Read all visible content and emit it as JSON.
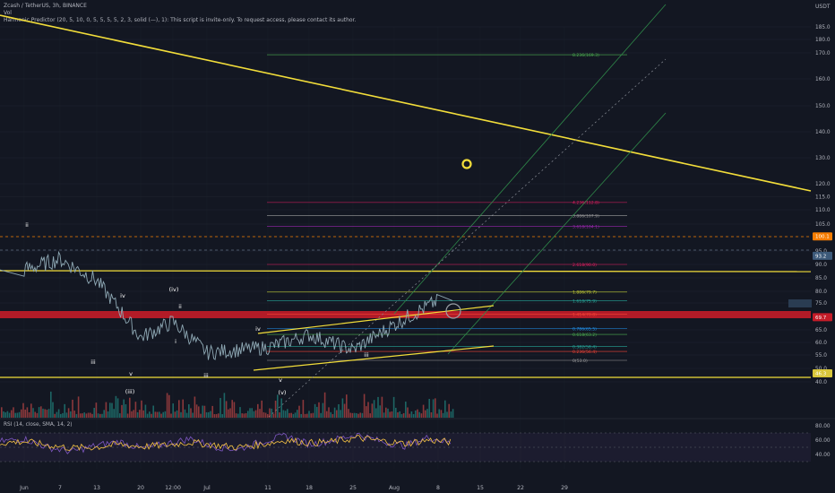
{
  "header": {
    "symbol_line": "Zcash / TetherUS, 3h, BINANCE",
    "vol_label": "Vol",
    "indicator_line": "Harmonic Predictor (20, 5, 10, 0, 5, 5, 5, 5, 2, 3, solid (—), 1): This script is invite-only. To request access, please contact its author."
  },
  "colors": {
    "background": "#131722",
    "price_line": "#8fa9b5",
    "trend_yellow": "#f2dd3a",
    "support_band": "#c41c28",
    "rsi_line": "#7e57c2",
    "rsi_ma": "#f6c343",
    "channel_green": "#2f8a4a",
    "vol_up": "#26a69a",
    "vol_down": "#ef5350"
  },
  "chart_data": [
    {
      "type": "line",
      "title": "Zcash / TetherUS, 3h, BINANCE",
      "currency": "USDT",
      "y_ticks": [
        40,
        50,
        55,
        60,
        65,
        70,
        75,
        80,
        85,
        90,
        95,
        100,
        105,
        110,
        115,
        120,
        130,
        140,
        150,
        160,
        170,
        180,
        185
      ],
      "ylim": [
        40,
        190
      ],
      "x_ticks": [
        "Jun",
        "7",
        "13",
        "20",
        "12:00",
        "Jul",
        "11",
        "18",
        "25",
        "Aug",
        "8",
        "15",
        "22",
        "29"
      ],
      "series": [
        {
          "x": [
            "Jun",
            "7",
            "13",
            "20",
            "12:00",
            "Jul",
            "11",
            "18",
            "25",
            "Aug",
            "8"
          ],
          "values": [
            88,
            92,
            84,
            62,
            68,
            56,
            58,
            63,
            57,
            67,
            76
          ]
        }
      ],
      "price_tags": [
        {
          "label": "100.1",
          "value": 100.1,
          "color": "#f57c00"
        },
        {
          "label": "93.2",
          "value": 93.2,
          "color": "#3d5a7a"
        },
        {
          "label": "69.7",
          "value": 69.7,
          "color": "#c41c28"
        },
        {
          "label": "46.3",
          "value": 46.3,
          "color": "#d8c63a"
        }
      ],
      "fib_levels": [
        {
          "label": "8.236(169.3)",
          "value": 169.3,
          "color": "#4caf50"
        },
        {
          "label": "4.236(112.8)",
          "value": 112.8,
          "color": "#e91e63"
        },
        {
          "label": "3.886(107.9)",
          "value": 107.9,
          "color": "#9e9e9e"
        },
        {
          "label": "3.618(104.1)",
          "value": 104.1,
          "color": "#9c27b0"
        },
        {
          "label": "2.618(90.0)",
          "value": 90.0,
          "color": "#e91e63"
        },
        {
          "label": "1.886(79.7)",
          "value": 79.7,
          "color": "#c0ca33"
        },
        {
          "label": "1.618(75.9)",
          "value": 75.9,
          "color": "#26a69a"
        },
        {
          "label": "1.414(70.8)",
          "value": 70.8,
          "color": "#f44336"
        },
        {
          "label": "0.786(65.5)",
          "value": 65.5,
          "color": "#2196f3"
        },
        {
          "label": "0.618(63.2)",
          "value": 63.2,
          "color": "#4caf50"
        },
        {
          "label": "0.382(58.4)",
          "value": 58.4,
          "color": "#26a69a"
        },
        {
          "label": "0.236(56.4)",
          "value": 56.4,
          "color": "#f44336"
        },
        {
          "label": "0(53.0)",
          "value": 53.0,
          "color": "#9e9e9e"
        }
      ],
      "wave_labels": [
        "ii",
        "iii",
        "iv",
        "v",
        "(iii)",
        "(iv)",
        "ii",
        "i",
        "iii",
        "iv",
        "v",
        "(v)",
        "iii"
      ]
    },
    {
      "type": "line",
      "title": "RSI (14, close, SMA, 14, 2)",
      "y_ticks": [
        40,
        60,
        80
      ],
      "tick_labels": [
        "40.00",
        "60.00",
        "80.00"
      ],
      "ylim": [
        20,
        90
      ],
      "series": [
        {
          "name": "RSI",
          "values": [
            58,
            62,
            50,
            44,
            52,
            58,
            48,
            55,
            62,
            51,
            47,
            58,
            66,
            54,
            60,
            68,
            58,
            52,
            64,
            55
          ]
        },
        {
          "name": "SMA",
          "values": [
            56,
            58,
            53,
            49,
            50,
            54,
            51,
            53,
            57,
            53,
            50,
            54,
            60,
            56,
            58,
            63,
            59,
            55,
            60,
            57
          ]
        }
      ]
    }
  ]
}
